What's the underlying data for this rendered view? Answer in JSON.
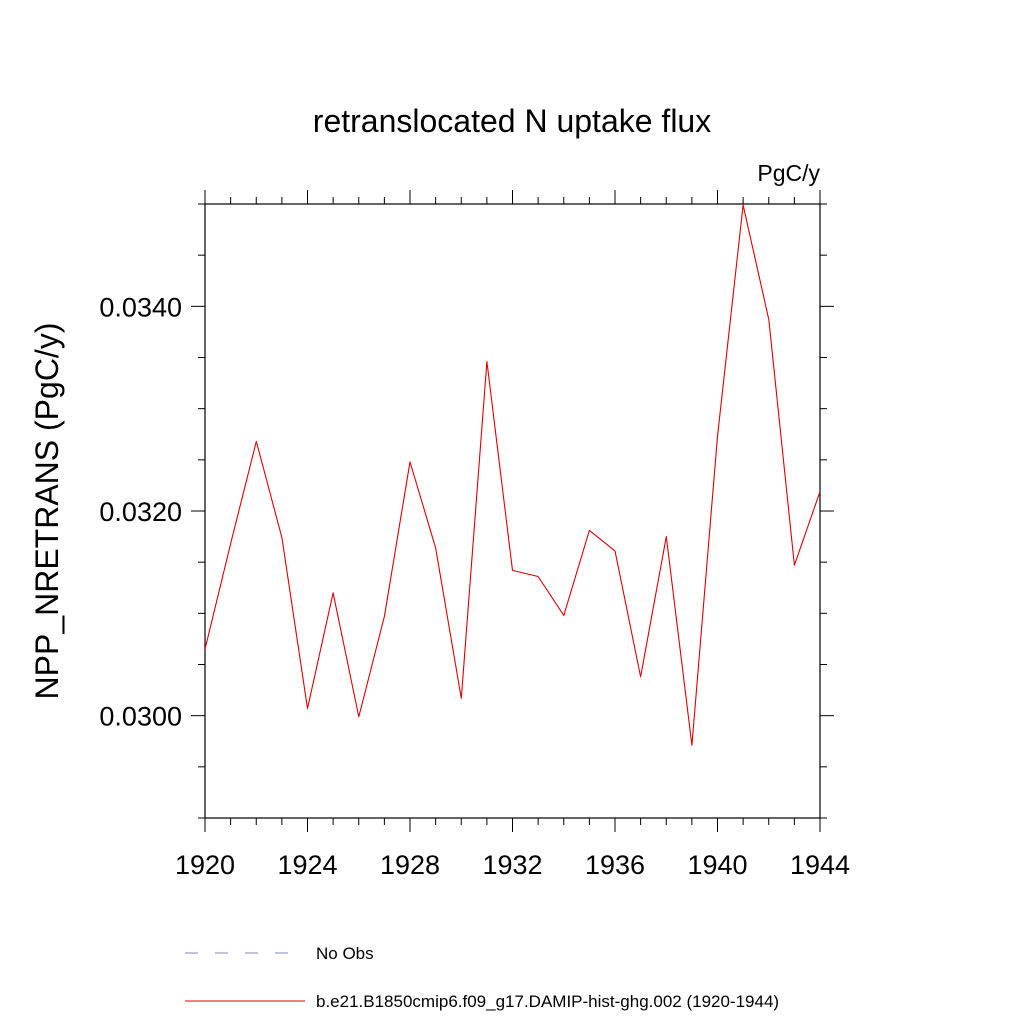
{
  "chart_data": {
    "type": "line",
    "title": "retranslocated N uptake flux",
    "units_label": "PgC/y",
    "ylabel": "NPP_NRETRANS  (PgC/y)",
    "xlabel": "",
    "xlim": [
      1920,
      1944
    ],
    "ylim": [
      0.029,
      0.035
    ],
    "x_ticks": [
      1920,
      1924,
      1928,
      1932,
      1936,
      1940,
      1944
    ],
    "x_tick_labels": [
      "1920",
      "1924",
      "1928",
      "1932",
      "1936",
      "1940",
      "1944"
    ],
    "y_ticks": [
      0.03,
      0.032,
      0.034
    ],
    "y_tick_labels": [
      "0.0300",
      "0.0320",
      "0.0340"
    ],
    "grid": false,
    "legend_position": "bottom",
    "legend": [
      {
        "name": "No Obs",
        "color": "#8080c0",
        "style": "dashed"
      },
      {
        "name": "b.e21.B1850cmip6.f09_g17.DAMIP-hist-ghg.002 (1920-1944)",
        "color": "#e00000",
        "style": "solid"
      }
    ],
    "series": [
      {
        "name": "b.e21.B1850cmip6.f09_g17.DAMIP-hist-ghg.002 (1920-1944)",
        "color": "#e00000",
        "x": [
          1920,
          1921,
          1922,
          1923,
          1924,
          1925,
          1926,
          1927,
          1928,
          1929,
          1930,
          1931,
          1932,
          1933,
          1934,
          1935,
          1936,
          1937,
          1938,
          1939,
          1940,
          1941,
          1942,
          1943,
          1944
        ],
        "y": [
          0.03065,
          0.03168,
          0.03268,
          0.03174,
          0.03007,
          0.0312,
          0.02999,
          0.03097,
          0.03248,
          0.03164,
          0.03017,
          0.03346,
          0.03142,
          0.03136,
          0.03098,
          0.03181,
          0.03161,
          0.03038,
          0.03175,
          0.02971,
          0.03273,
          0.03499,
          0.03387,
          0.03147,
          0.03219
        ]
      }
    ]
  }
}
